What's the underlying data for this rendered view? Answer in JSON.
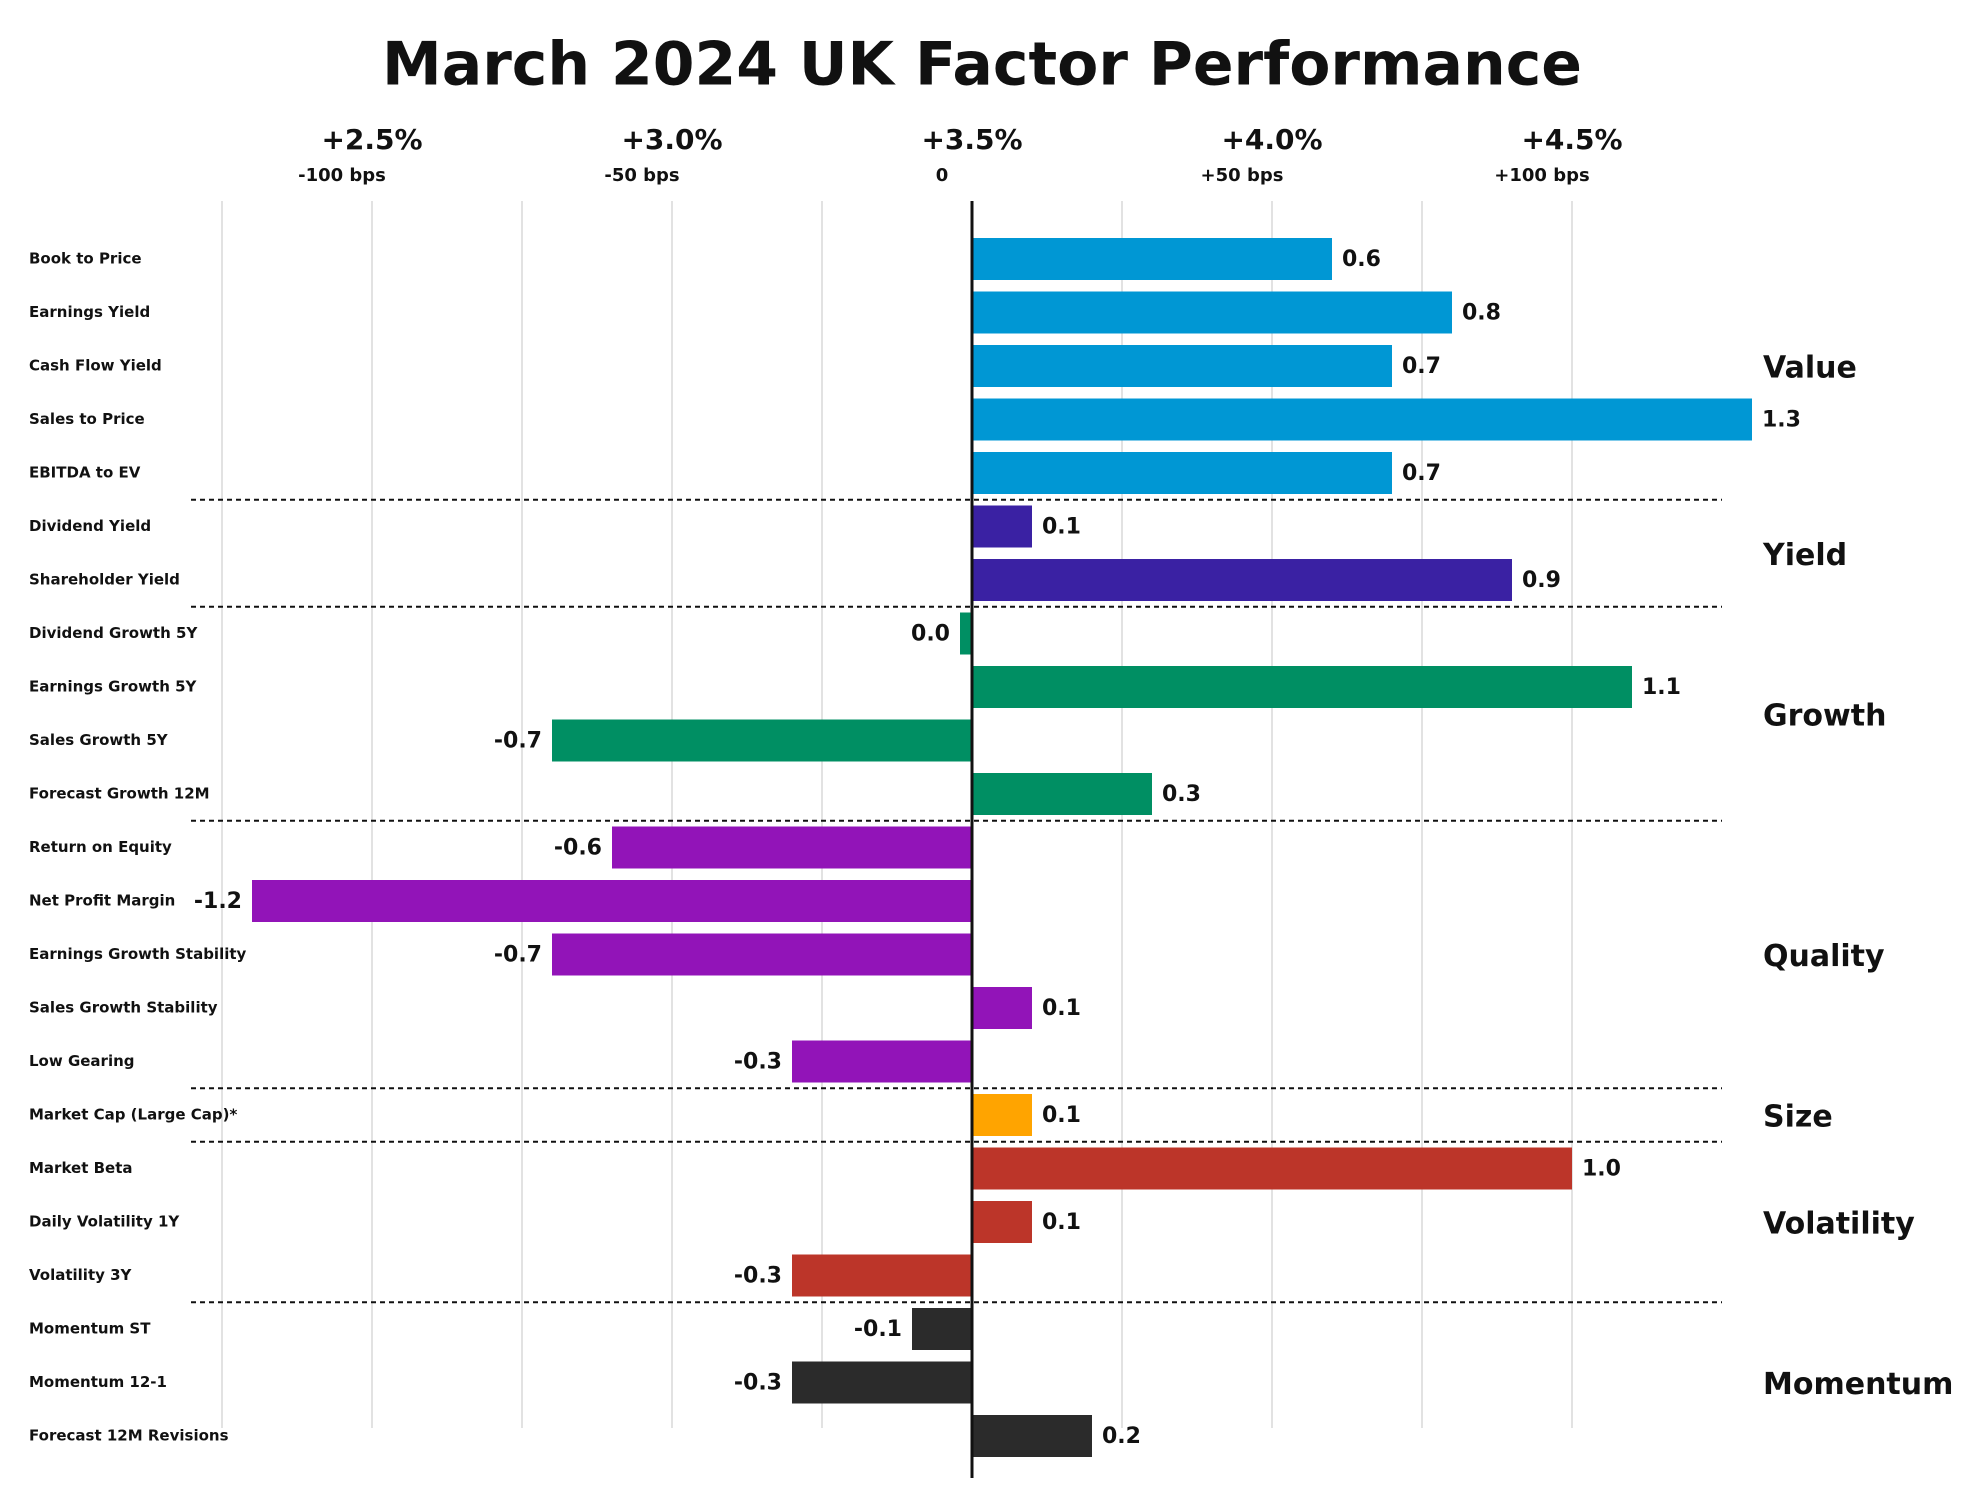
{
  "chart_data": {
    "type": "bar",
    "orientation": "horizontal",
    "title": "March 2024 UK Factor Performance",
    "xlim": [
      -1.25,
      1.25
    ],
    "xticks": [
      {
        "value": -1,
        "label": "+2.5%"
      },
      {
        "value": -0.5,
        "label": "+3.0%"
      },
      {
        "value": 0,
        "label": "+3.5%"
      },
      {
        "value": 0.5,
        "label": "+4.0%"
      },
      {
        "value": 1,
        "label": "+4.5%"
      }
    ],
    "xticks_bps": [
      {
        "value": -1,
        "label": "-100 bps"
      },
      {
        "value": -0.5,
        "label": "-50 bps"
      },
      {
        "value": 0,
        "label": "0"
      },
      {
        "value": 0.5,
        "label": "+50 bps"
      },
      {
        "value": 1,
        "label": "+100 bps"
      }
    ],
    "xgrid": [
      -1.25,
      -1,
      -0.75,
      -0.5,
      -0.25,
      0.25,
      0.5,
      0.75,
      1
    ],
    "series": [
      {
        "name": "Value",
        "color": "#0097d4",
        "categories": [
          "Book to Price",
          "Earnings Yield",
          "Cash Flow Yield",
          "Sales to Price",
          "EBITDA to EV"
        ],
        "values": [
          0.6,
          0.8,
          0.7,
          1.3,
          0.7
        ],
        "value_labels": [
          "0.6",
          "0.8",
          "0.7",
          "1.3",
          "0.7"
        ]
      },
      {
        "name": "Yield",
        "color": "#3a21a3",
        "categories": [
          "Dividend Yield",
          "Shareholder Yield"
        ],
        "values": [
          0.1,
          0.9
        ],
        "value_labels": [
          "0.1",
          "0.9"
        ]
      },
      {
        "name": "Growth",
        "color": "#008f63",
        "categories": [
          "Dividend Growth 5Y",
          "Earnings Growth 5Y",
          "Sales Growth 5Y",
          "Forecast Growth 12M"
        ],
        "values": [
          -0.02,
          1.1,
          -0.7,
          0.3
        ],
        "value_labels": [
          "0.0",
          "1.1",
          "-0.7",
          "0.3"
        ]
      },
      {
        "name": "Quality",
        "color": "#9214b8",
        "categories": [
          "Return on Equity",
          "Net Profit Margin",
          "Earnings Growth Stability",
          "Sales Growth Stability",
          "Low Gearing"
        ],
        "values": [
          -0.6,
          -1.2,
          -0.7,
          0.1,
          -0.3
        ],
        "value_labels": [
          "-0.6",
          "-1.2",
          "-0.7",
          "0.1",
          "-0.3"
        ]
      },
      {
        "name": "Size",
        "color": "#ffa400",
        "categories": [
          "Market Cap (Large Cap)*"
        ],
        "values": [
          0.1
        ],
        "value_labels": [
          "0.1"
        ]
      },
      {
        "name": "Volatility",
        "color": "#bc3529",
        "categories": [
          "Market Beta",
          "Daily Volatility 1Y",
          "Volatility 3Y"
        ],
        "values": [
          1,
          0.1,
          -0.3
        ],
        "value_labels": [
          "1.0",
          "0.1",
          "-0.3"
        ]
      },
      {
        "name": "Momentum",
        "color": "#2b2b2b",
        "categories": [
          "Momentum ST",
          "Momentum 12-1",
          "Forecast 12M Revisions"
        ],
        "values": [
          -0.1,
          -0.3,
          0.2
        ],
        "value_labels": [
          "-0.1",
          "-0.3",
          "0.2"
        ]
      }
    ]
  }
}
